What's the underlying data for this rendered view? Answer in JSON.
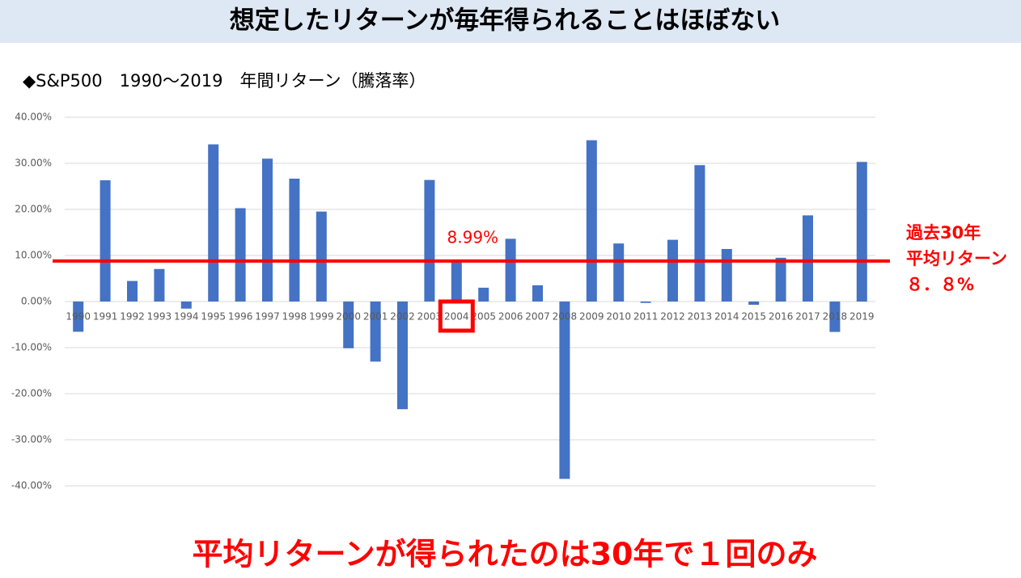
{
  "header": {
    "title": "想定したリターンが毎年得られることはほぼない"
  },
  "chart_data": {
    "type": "bar",
    "title": "◆S&P500　1990〜2019　年間リターン（騰落率）",
    "categories": [
      "1990",
      "1991",
      "1992",
      "1993",
      "1994",
      "1995",
      "1996",
      "1997",
      "1998",
      "1999",
      "2000",
      "2001",
      "2002",
      "2003",
      "2004",
      "2005",
      "2006",
      "2007",
      "2008",
      "2009",
      "2010",
      "2011",
      "2012",
      "2013",
      "2014",
      "2015",
      "2016",
      "2017",
      "2018",
      "2019"
    ],
    "values": [
      -6.56,
      26.31,
      4.46,
      7.06,
      -1.54,
      34.11,
      20.26,
      31.01,
      26.67,
      19.53,
      -10.14,
      -13.04,
      -23.37,
      26.38,
      8.99,
      3.0,
      13.62,
      3.53,
      -38.49,
      35.0,
      12.6,
      -0.3,
      13.4,
      29.6,
      11.4,
      -0.7,
      9.5,
      18.7,
      -6.6,
      30.3
    ],
    "value_labels": [
      null,
      null,
      null,
      null,
      null,
      null,
      null,
      null,
      null,
      null,
      null,
      null,
      null,
      null,
      "8.99%",
      null,
      null,
      null,
      null,
      null,
      null,
      null,
      null,
      null,
      null,
      null,
      null,
      null,
      null,
      null
    ],
    "color": "#4472c4",
    "ylim": [
      -40,
      40
    ],
    "yticks": [
      {
        "value": -40,
        "label": "-40.00%"
      },
      {
        "value": -30,
        "label": "-30.00%"
      },
      {
        "value": -20,
        "label": "-20.00%"
      },
      {
        "value": -10,
        "label": "-10.00%"
      },
      {
        "value": 0,
        "label": "0.00%"
      },
      {
        "value": 10,
        "label": "10.00%"
      },
      {
        "value": 20,
        "label": "20.00%"
      },
      {
        "value": 30,
        "label": "30.00%"
      },
      {
        "value": 40,
        "label": "40.00%"
      }
    ],
    "grid": true,
    "average_line": {
      "value": 8.8,
      "color": "#ff0000",
      "labels": [
        "過去30年",
        "平均リターン",
        "８．８%"
      ]
    }
  },
  "footer": {
    "text": "平均リターンが得られたのは30年で１回のみ"
  }
}
